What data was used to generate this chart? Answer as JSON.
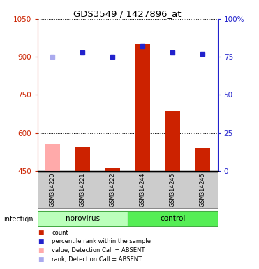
{
  "title": "GDS3549 / 1427896_at",
  "samples": [
    "GSM314220",
    "GSM314221",
    "GSM314222",
    "GSM314244",
    "GSM314245",
    "GSM314246"
  ],
  "bar_values": [
    555,
    543,
    462,
    950,
    685,
    540
  ],
  "bar_colors": [
    "#ffaaaa",
    "#cc2200",
    "#cc2200",
    "#cc2200",
    "#cc2200",
    "#cc2200"
  ],
  "dot_values_pct": [
    75,
    78,
    75,
    82,
    78,
    77
  ],
  "dot_colors": [
    "#aaaaee",
    "#2222cc",
    "#2222cc",
    "#2222cc",
    "#2222cc",
    "#2222cc"
  ],
  "groups": [
    {
      "label": "norovirus",
      "start": 0,
      "end": 3,
      "color": "#bbffbb"
    },
    {
      "label": "control",
      "start": 3,
      "end": 6,
      "color": "#55ee55"
    }
  ],
  "group_label": "infection",
  "ylim_left": [
    450,
    1050
  ],
  "ylim_right": [
    0,
    100
  ],
  "yticks_left": [
    450,
    600,
    750,
    900,
    1050
  ],
  "yticks_right": [
    0,
    25,
    50,
    75,
    100
  ],
  "yticklabels_right": [
    "0",
    "25",
    "50",
    "75",
    "100%"
  ],
  "legend": [
    {
      "label": "count",
      "color": "#cc2200"
    },
    {
      "label": "percentile rank within the sample",
      "color": "#2222cc"
    },
    {
      "label": "value, Detection Call = ABSENT",
      "color": "#ffaaaa"
    },
    {
      "label": "rank, Detection Call = ABSENT",
      "color": "#aaaaee"
    }
  ],
  "bar_width": 0.5,
  "bar_baseline": 450,
  "left_axis_color": "#cc2200",
  "right_axis_color": "#2222cc"
}
